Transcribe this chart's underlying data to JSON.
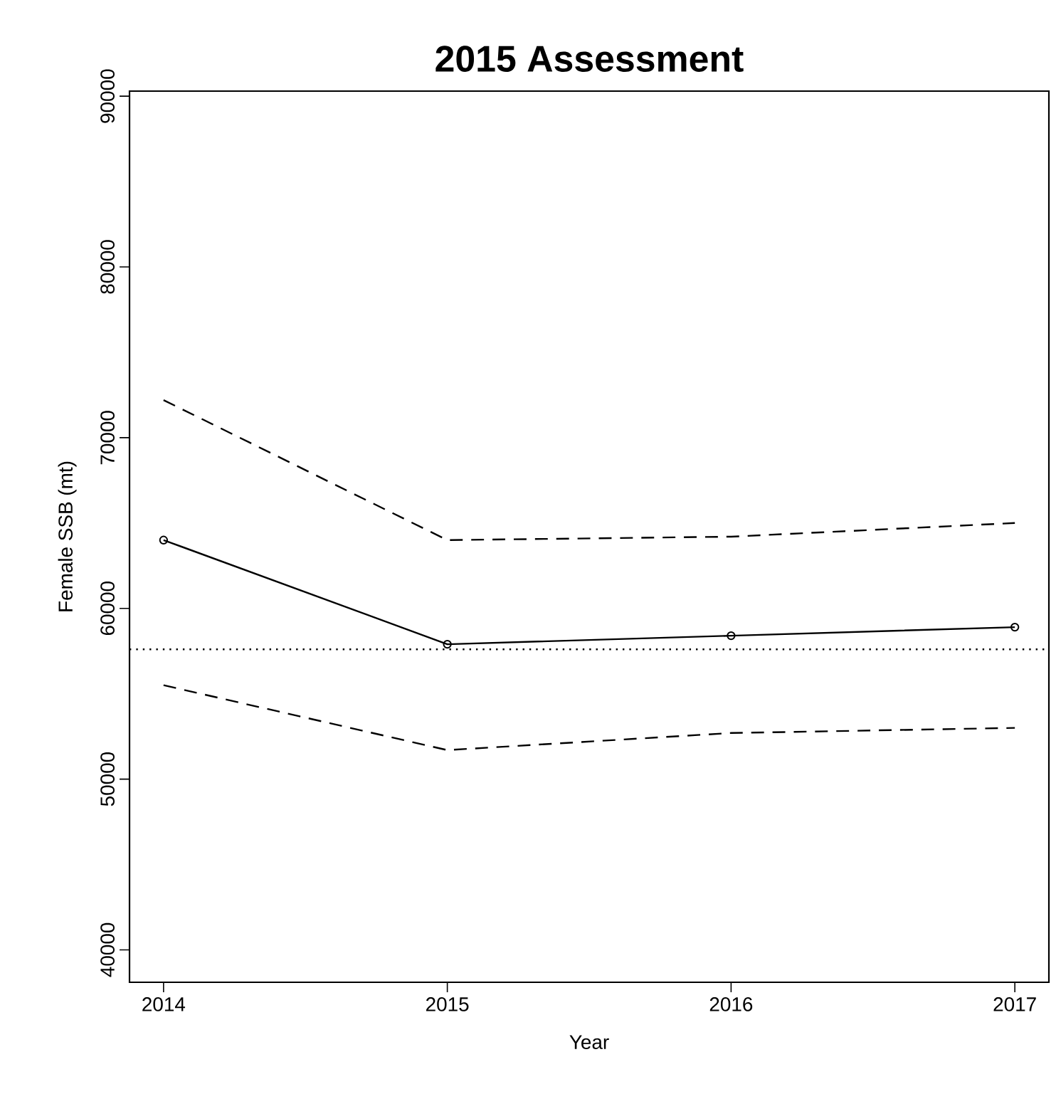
{
  "chart_data": {
    "type": "line",
    "title": "2015 Assessment",
    "xlabel": "Year",
    "ylabel": "Female SSB (mt)",
    "x": [
      2014,
      2015,
      2016,
      2017
    ],
    "series": [
      {
        "color": "#000000",
        "values": [
          64000,
          57900,
          58400,
          58900
        ],
        "marker": "circle",
        "line_style": "solid"
      },
      {
        "color": "#000000",
        "values": [
          72200,
          64000,
          64200,
          65000
        ],
        "marker": "none",
        "line_style": "dashed"
      },
      {
        "color": "#000000",
        "values": [
          55500,
          51700,
          52700,
          53000
        ],
        "marker": "none",
        "line_style": "dashed"
      }
    ],
    "xlim": [
      2013.88,
      2017.12
    ],
    "xticks": [
      2014,
      2015,
      2016,
      2017
    ],
    "ylim": [
      38100,
      90300
    ],
    "yticks": [
      40000,
      50000,
      60000,
      70000,
      80000,
      90000
    ],
    "ref_lines": [
      {
        "axis": "y",
        "value": 57600,
        "color": "#000000",
        "line_style": "dotted"
      }
    ],
    "grid": false
  }
}
